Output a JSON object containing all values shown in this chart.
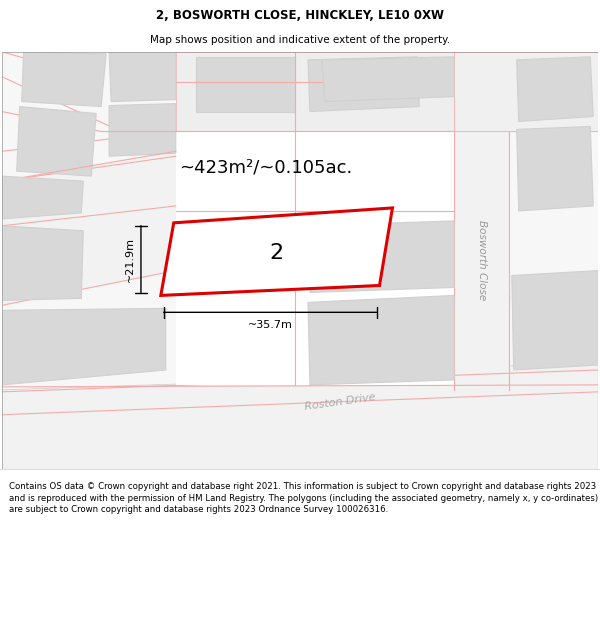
{
  "title": "2, BOSWORTH CLOSE, HINCKLEY, LE10 0XW",
  "subtitle": "Map shows position and indicative extent of the property.",
  "area_text": "~423m²/~0.105ac.",
  "dim_width": "~35.7m",
  "dim_height": "~21.9m",
  "property_number": "2",
  "road_label_1": "Bosworth Close",
  "road_label_2": "Roston Drive",
  "footer": "Contains OS data © Crown copyright and database right 2021. This information is subject to Crown copyright and database rights 2023 and is reproduced with the permission of HM Land Registry. The polygons (including the associated geometry, namely x, y co-ordinates) are subject to Crown copyright and database rights 2023 Ordnance Survey 100026316.",
  "plot_edge": "#dd0000",
  "road_line": "#f5aaaa",
  "building_fill": "#d8d8d8",
  "building_line": "#d0d0d0",
  "title_fontsize": 8.5,
  "subtitle_fontsize": 7.5,
  "area_fontsize": 13,
  "dim_fontsize": 8,
  "number_fontsize": 16,
  "footer_fontsize": 6.2
}
